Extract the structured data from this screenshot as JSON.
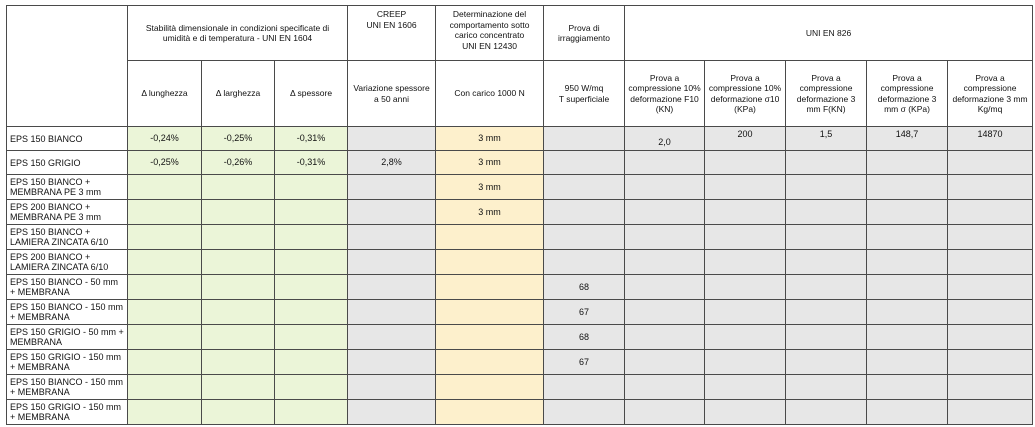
{
  "headers": {
    "stability": "Stabilità dimensionale in condizioni specificate di umidità e di temperatura - UNI EN 1604",
    "creep": "CREEP\nUNI EN 1606",
    "load": "Determinazione del comportamento sotto carico concentrato\nUNI EN 12430",
    "irradiation": "Prova di irraggiamento",
    "uni826": "UNI EN 826",
    "delta_length": "Δ lunghezza",
    "delta_width": "Δ larghezza",
    "delta_thickness": "Δ spessore",
    "creep_sub": "Variazione spessore a 50 anni",
    "load_sub": "Con carico 1000 N",
    "irr_sub": "950 W/mq\nT superficiale",
    "c1": "Prova a compressione 10% deformazione F10 (KN)",
    "c2": "Prova a compressione 10% deformazione σ10 (KPa)",
    "c3": "Prova a compressione deformazione 3 mm F(KN)",
    "c4": "Prova a compressione deformazione 3 mm σ (KPa)",
    "c5": "Prova a compressione deformazione 3 mm Kg/mq"
  },
  "rows": [
    {
      "label": "EPS 150 BIANCO",
      "dl": "-0,24%",
      "dw": "-0,25%",
      "dt": "-0,31%",
      "creep": "",
      "load": "3 mm",
      "irr": "",
      "c1": "2,0",
      "c2": "200",
      "c3": "1,5",
      "c4": "148,7",
      "c5": "14870"
    },
    {
      "label": "EPS 150 GRIGIO",
      "dl": "-0,25%",
      "dw": "-0,26%",
      "dt": "-0,31%",
      "creep": "2,8%",
      "load": "3 mm",
      "irr": "",
      "c1": "",
      "c2": "",
      "c3": "",
      "c4": "",
      "c5": ""
    },
    {
      "label": "EPS 150 BIANCO + MEMBRANA PE 3 mm",
      "dl": "",
      "dw": "",
      "dt": "",
      "creep": "",
      "load": "3 mm",
      "irr": "",
      "c1": "",
      "c2": "",
      "c3": "",
      "c4": "",
      "c5": ""
    },
    {
      "label": "EPS 200 BIANCO + MEMBRANA PE 3 mm",
      "dl": "",
      "dw": "",
      "dt": "",
      "creep": "",
      "load": "3 mm",
      "irr": "",
      "c1": "",
      "c2": "",
      "c3": "",
      "c4": "",
      "c5": ""
    },
    {
      "label": "EPS 150 BIANCO + LAMIERA ZINCATA 6/10",
      "dl": "",
      "dw": "",
      "dt": "",
      "creep": "",
      "load": "",
      "irr": "",
      "c1": "",
      "c2": "",
      "c3": "",
      "c4": "",
      "c5": ""
    },
    {
      "label": "EPS 200 BIANCO + LAMIERA ZINCATA 6/10",
      "dl": "",
      "dw": "",
      "dt": "",
      "creep": "",
      "load": "",
      "irr": "",
      "c1": "",
      "c2": "",
      "c3": "",
      "c4": "",
      "c5": ""
    },
    {
      "label": "EPS 150 BIANCO - 50 mm + MEMBRANA",
      "dl": "",
      "dw": "",
      "dt": "",
      "creep": "",
      "load": "",
      "irr": "68",
      "c1": "",
      "c2": "",
      "c3": "",
      "c4": "",
      "c5": ""
    },
    {
      "label": "EPS 150 BIANCO - 150 mm + MEMBRANA",
      "dl": "",
      "dw": "",
      "dt": "",
      "creep": "",
      "load": "",
      "irr": "67",
      "c1": "",
      "c2": "",
      "c3": "",
      "c4": "",
      "c5": ""
    },
    {
      "label": "EPS 150 GRIGIO - 50 mm + MEMBRANA",
      "dl": "",
      "dw": "",
      "dt": "",
      "creep": "",
      "load": "",
      "irr": "68",
      "c1": "",
      "c2": "",
      "c3": "",
      "c4": "",
      "c5": ""
    },
    {
      "label": "EPS 150 GRIGIO - 150 mm + MEMBRANA",
      "dl": "",
      "dw": "",
      "dt": "",
      "creep": "",
      "load": "",
      "irr": "67",
      "c1": "",
      "c2": "",
      "c3": "",
      "c4": "",
      "c5": ""
    },
    {
      "label": "EPS 150 BIANCO - 150 mm + MEMBRANA",
      "dl": "",
      "dw": "",
      "dt": "",
      "creep": "",
      "load": "",
      "irr": "",
      "c1": "",
      "c2": "",
      "c3": "",
      "c4": "",
      "c5": ""
    },
    {
      "label": "EPS 150 GRIGIO - 150 mm + MEMBRANA",
      "dl": "",
      "dw": "",
      "dt": "",
      "creep": "",
      "load": "",
      "irr": "",
      "c1": "",
      "c2": "",
      "c3": "",
      "c4": "",
      "c5": ""
    }
  ],
  "colors": {
    "green": "#ebf5d8",
    "orange": "#fdf0cc",
    "grey": "#e7e7e7"
  }
}
